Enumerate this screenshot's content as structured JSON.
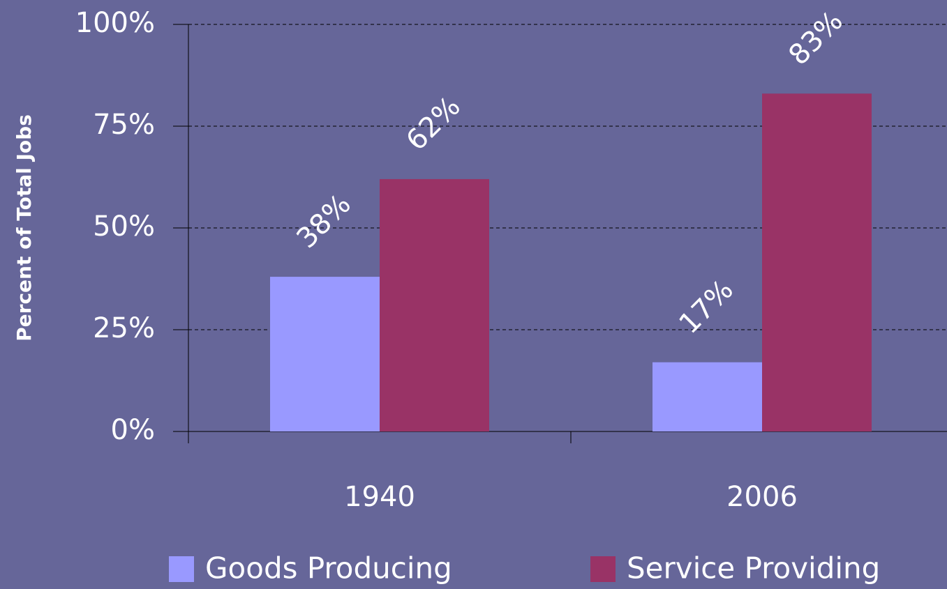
{
  "chart_data": {
    "type": "bar",
    "y_label": "Percent of Total Jobs",
    "categories": [
      "1940",
      "2006"
    ],
    "series": [
      {
        "name": "Goods Producing",
        "color": "#9999ff",
        "values": [
          38,
          17
        ],
        "value_labels": [
          "38%",
          "17%"
        ]
      },
      {
        "name": "Service Providing",
        "color": "#993366",
        "values": [
          62,
          83
        ],
        "value_labels": [
          "62%",
          "83%"
        ]
      }
    ],
    "ylim": [
      0,
      100
    ],
    "yticks": [
      {
        "value": 0,
        "label": "0%"
      },
      {
        "value": 25,
        "label": "25%"
      },
      {
        "value": 50,
        "label": "50%"
      },
      {
        "value": 75,
        "label": "75%"
      },
      {
        "value": 100,
        "label": "100%"
      }
    ],
    "grid": true,
    "legend": "bottom"
  }
}
